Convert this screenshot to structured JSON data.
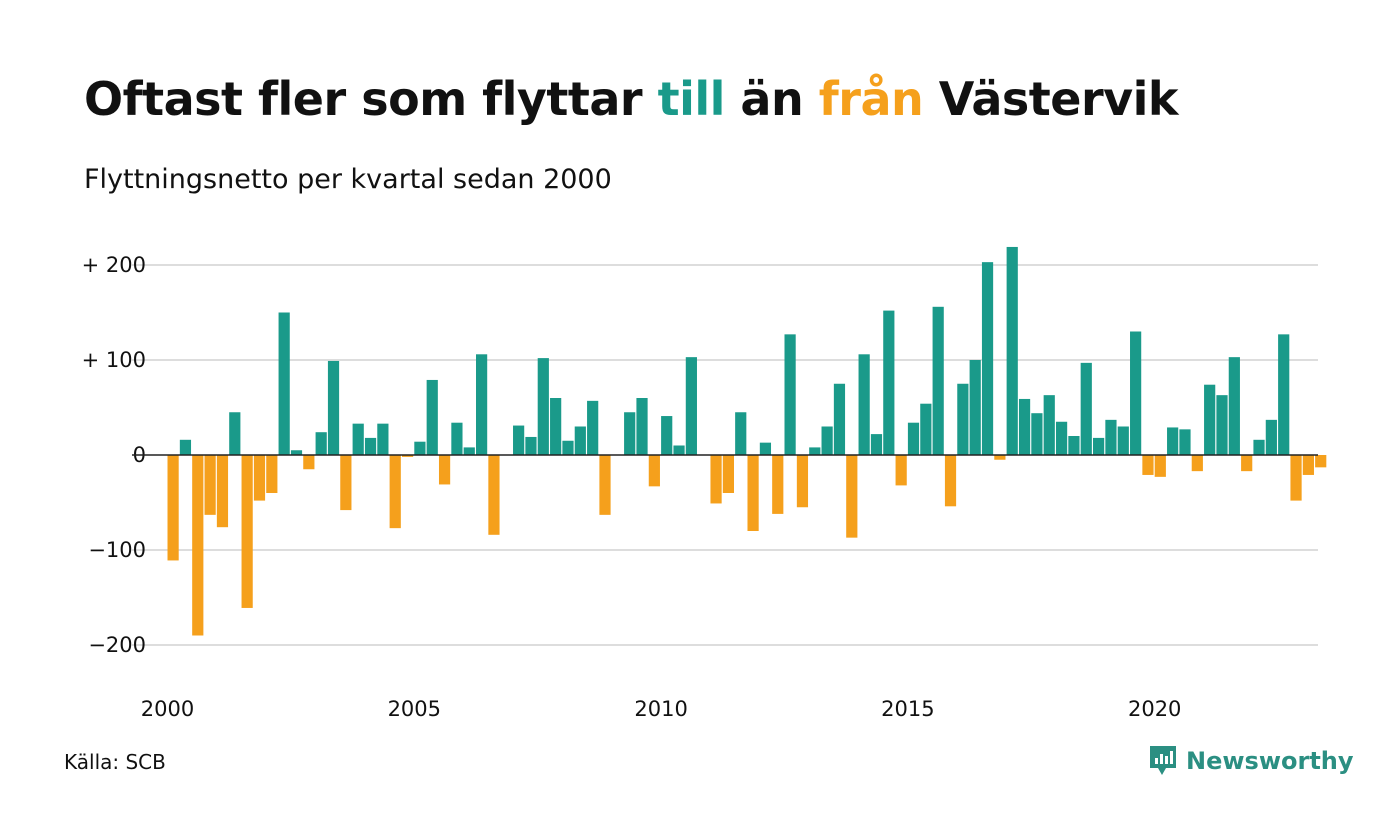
{
  "title": {
    "part1": "Oftast fler som flyttar ",
    "part_till": "till",
    "part2": " än ",
    "part_fran": "från",
    "part3": " Västervik"
  },
  "subtitle": "Flyttningsnetto per kvartal sedan 2000",
  "source": "Källa: SCB",
  "brand": "Newsworthy",
  "colors": {
    "positive": "#1a9a8a",
    "negative": "#f5a01c",
    "grid": "#dddddd",
    "brand": "#2b8f82"
  },
  "chart_data": {
    "type": "bar",
    "title": "Oftast fler som flyttar till än från Västervik",
    "subtitle": "Flyttningsnetto per kvartal sedan 2000",
    "xlabel": "",
    "ylabel": "",
    "ylim": [
      -200,
      200
    ],
    "grid": true,
    "y_ticks": [
      200,
      100,
      0,
      -100,
      -200
    ],
    "y_tick_labels": [
      "+ 200",
      "+ 100",
      "0",
      "−100",
      "−200"
    ],
    "x_tick_labels": [
      "2000",
      "2005",
      "2010",
      "2015",
      "2020"
    ],
    "x_tick_years": [
      2000,
      2005,
      2010,
      2015,
      2020
    ],
    "start_year": 2000,
    "start_quarter": 1,
    "values": [
      -111,
      16,
      -190,
      -63,
      -76,
      45,
      -161,
      -48,
      -40,
      150,
      5,
      -15,
      24,
      99,
      -58,
      33,
      18,
      33,
      -77,
      -2,
      14,
      79,
      -31,
      34,
      8,
      106,
      -84,
      0,
      31,
      19,
      102,
      60,
      15,
      30,
      57,
      -63,
      0,
      45,
      60,
      -33,
      41,
      10,
      103,
      0,
      -51,
      -40,
      45,
      -80,
      13,
      -62,
      127,
      -55,
      8,
      30,
      75,
      -87,
      106,
      22,
      152,
      -32,
      34,
      54,
      156,
      -54,
      75,
      100,
      203,
      -5,
      219,
      59,
      44,
      63,
      35,
      20,
      97,
      18,
      37,
      30,
      130,
      -21,
      -23,
      29,
      27,
      -17,
      74,
      63,
      103,
      -17,
      16,
      37,
      127,
      -48,
      -21,
      -13
    ]
  }
}
